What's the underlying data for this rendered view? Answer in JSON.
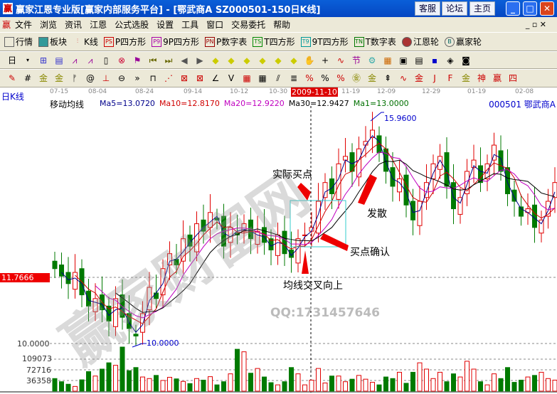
{
  "window": {
    "title": "赢家江恩专业版[赢家内部服务平台] - [鄂武商A    SZ000501-150日K线]",
    "buttons": [
      "客服",
      "论坛",
      "主页"
    ]
  },
  "menu": [
    "文件",
    "浏览",
    "资讯",
    "江恩",
    "公式选股",
    "设置",
    "工具",
    "窗口",
    "交易委托",
    "帮助"
  ],
  "toolbar1": [
    {
      "icon": "grid-icon",
      "label": "行情"
    },
    {
      "icon": "blocks-icon",
      "label": "板块"
    },
    {
      "icon": "candles-icon",
      "label": "K线"
    },
    {
      "icon": "PS",
      "label": "P四方形"
    },
    {
      "icon": "P9",
      "label": "9P四方形"
    },
    {
      "icon": "PN",
      "label": "P数字表"
    },
    {
      "icon": "TS",
      "label": "T四方形"
    },
    {
      "icon": "T9",
      "label": "9T四方形"
    },
    {
      "icon": "TN",
      "label": "T数字表"
    },
    {
      "icon": "wheel-icon",
      "label": "江恩轮"
    },
    {
      "icon": "big-icon",
      "label": "赢家轮"
    }
  ],
  "toolbar2": {
    "period": "日"
  },
  "chart": {
    "period_label": "日K线",
    "indicator": "移动均线",
    "ma": [
      {
        "label": "Ma5=13.0720",
        "color": "#00008b"
      },
      {
        "label": "Ma10=12.8170",
        "color": "#d00000"
      },
      {
        "label": "Ma20=12.9220",
        "color": "#c000c0"
      },
      {
        "label": "Ma30=12.9427",
        "color": "#000000"
      },
      {
        "label": "Ma1=13.0000",
        "color": "#007000"
      }
    ],
    "stock": "000501  鄂武商A",
    "dates": [
      "07-15",
      "08-04",
      "08-24",
      "09-14",
      "10-12",
      "10-30",
      "11-19",
      "12-09",
      "12-29",
      "01-19",
      "02-08"
    ],
    "cursor_date": "2009-11-10",
    "cursor_price": "11.7666",
    "high_label": "15.9600",
    "low_label": "10.0000",
    "price_axis_label": "10.0000",
    "volume_ticks": [
      "109073",
      "72716",
      "36358"
    ],
    "annotations": {
      "actual_buy": "实际买点",
      "diverge": "发散",
      "buy_confirm": "买点确认",
      "ma_cross": "均线交叉向上",
      "qq": "QQ:1731457646"
    },
    "watermark": "赢家财富网",
    "up_color": "#e00000",
    "down_color": "#007a00"
  },
  "chart_data": {
    "type": "candlestick",
    "closes": [
      12.0,
      11.8,
      11.6,
      11.9,
      11.3,
      11.0,
      11.2,
      10.9,
      10.6,
      11.2,
      10.7,
      10.4,
      10.2,
      10.8,
      11.5,
      11.2,
      12.0,
      12.4,
      12.1,
      12.8,
      12.6,
      13.2,
      13.0,
      13.5,
      13.3,
      12.6,
      13.1,
      12.9,
      13.2,
      12.8,
      13.0,
      12.7,
      12.5,
      12.9,
      12.4,
      12.3,
      12.8,
      12.9,
      13.1,
      13.8,
      14.3,
      14.0,
      14.8,
      15.0,
      14.6,
      15.2,
      15.4,
      15.7,
      15.1,
      14.6,
      14.2,
      14.4,
      13.7,
      13.3,
      13.8,
      14.3,
      14.8,
      15.0,
      14.2,
      13.6,
      13.9,
      14.6,
      14.9,
      14.3,
      14.8,
      15.3,
      14.6,
      14.0,
      13.8,
      13.4,
      13.6,
      13.1,
      13.3,
      13.8,
      14.3
    ],
    "volumes": [
      40000,
      30000,
      22000,
      15000,
      36000,
      62000,
      48000,
      70000,
      90000,
      82000,
      140000,
      65000,
      75000,
      45000,
      40000,
      50000,
      34000,
      44000,
      39000,
      31000,
      24000,
      40000,
      35000,
      46000,
      20000,
      30000,
      55000,
      133000,
      125000,
      57000,
      72000,
      45000,
      27000,
      20000,
      30000,
      75000,
      55000,
      20000,
      35000,
      72000,
      26000,
      48000,
      48000,
      30000,
      38000,
      50000,
      38000,
      28000,
      20000,
      45000,
      40000,
      60000,
      25000,
      60000,
      90000,
      70000,
      40000,
      60000,
      30000,
      55000,
      45000,
      95000,
      70000,
      30000,
      20000,
      55000,
      40000,
      75000,
      28000,
      35000,
      45000,
      50000,
      60000,
      40000,
      35000
    ],
    "ylim": [
      10.0,
      16.0
    ]
  }
}
